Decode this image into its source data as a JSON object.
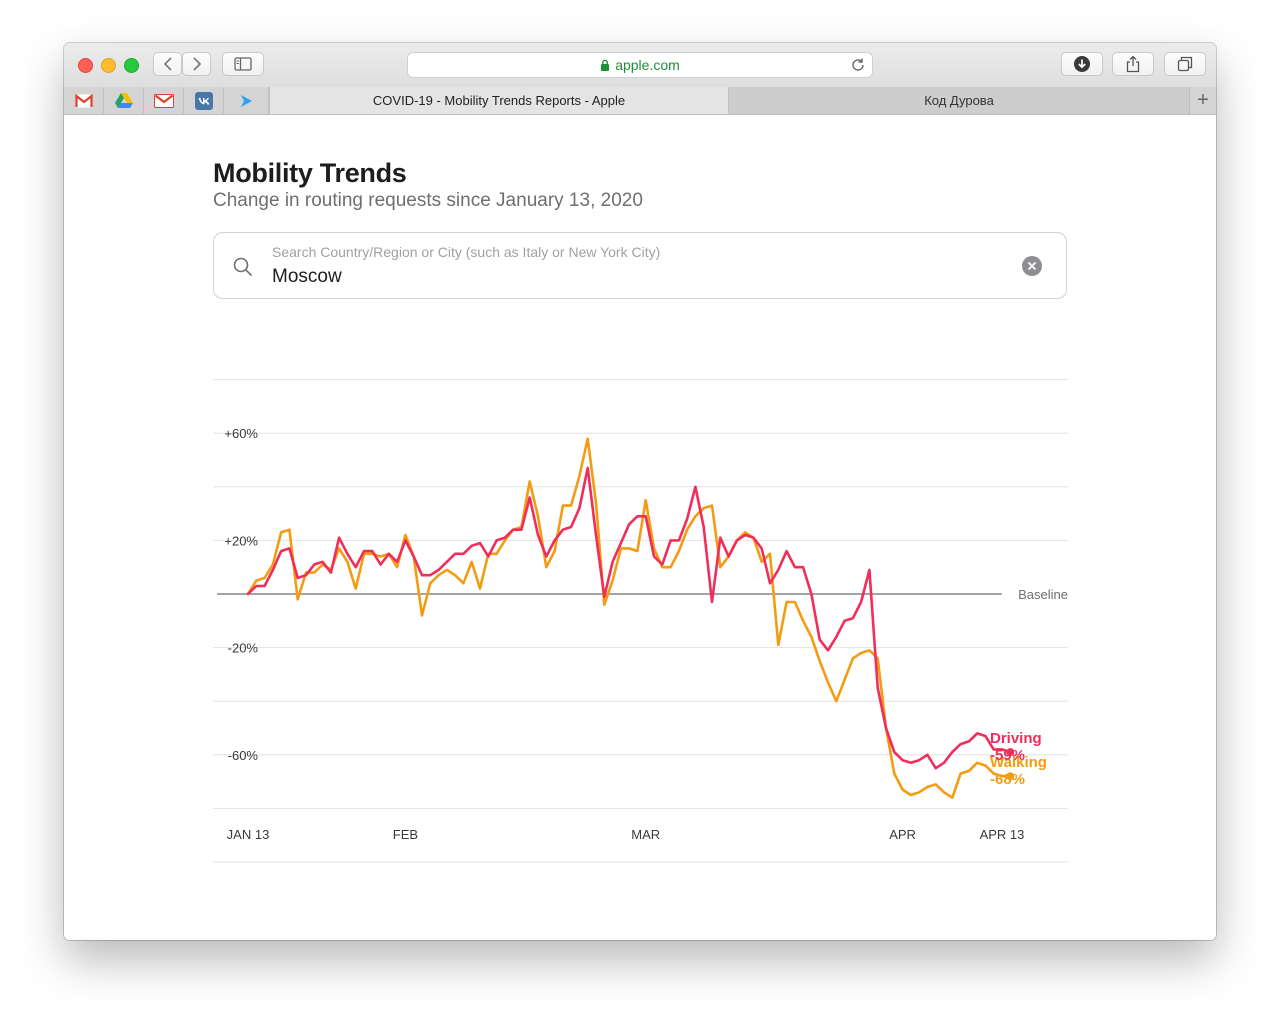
{
  "browser": {
    "address": "apple.com",
    "tabs": [
      {
        "label": "COVID-19 - Mobility Trends Reports - Apple",
        "active": true
      },
      {
        "label": "Код Дурова",
        "active": false
      }
    ],
    "favorites": [
      "gmail-icon",
      "google-drive-icon",
      "gmail-icon",
      "vk-icon",
      "telegram-icon"
    ]
  },
  "page": {
    "title": "Mobility Trends",
    "subtitle": "Change in routing requests since January 13, 2020",
    "search": {
      "placeholder": "Search Country/Region or City (such as Italy or New York City)",
      "value": "Moscow"
    }
  },
  "chart_data": {
    "type": "line",
    "x_axis": {
      "kind": "date",
      "start": "2020-01-13",
      "end": "2020-04-13",
      "tick_labels": [
        {
          "date": "2020-01-13",
          "label": "JAN 13"
        },
        {
          "date": "2020-02-01",
          "label": "FEB"
        },
        {
          "date": "2020-03-01",
          "label": "MAR"
        },
        {
          "date": "2020-04-01",
          "label": "APR"
        },
        {
          "date": "2020-04-13",
          "label": "APR 13"
        }
      ]
    },
    "y_axis": {
      "ylim": [
        -100,
        80
      ],
      "tick_labels": [
        {
          "value": 60,
          "label": "+60%"
        },
        {
          "value": 20,
          "label": "+20%"
        },
        {
          "value": -20,
          "label": "-20%"
        },
        {
          "value": -60,
          "label": "-60%"
        }
      ],
      "grid_values": [
        80,
        60,
        40,
        20,
        -20,
        -40,
        -60,
        -80,
        -100
      ]
    },
    "baseline": {
      "value": 0,
      "label": "Baseline"
    },
    "series": [
      {
        "name": "Driving",
        "end_label": "-59%",
        "color": "#ef2e5a",
        "values": [
          0,
          3,
          3,
          9,
          16,
          17,
          6,
          7,
          11,
          12,
          8,
          21,
          15,
          10,
          16,
          16,
          11,
          15,
          12,
          20,
          14,
          7,
          7,
          9,
          12,
          15,
          15,
          18,
          19,
          14,
          20,
          21,
          24,
          24,
          36,
          22,
          14,
          20,
          24,
          25,
          32,
          47,
          22,
          -1,
          12,
          19,
          26,
          29,
          29,
          14,
          11,
          20,
          20,
          28,
          40,
          25,
          -3,
          21,
          14,
          20,
          22,
          21,
          17,
          4,
          9,
          16,
          10,
          10,
          0,
          -17,
          -21,
          -16,
          -10,
          -9,
          -3,
          9,
          -35,
          -50,
          -59,
          -62,
          -63,
          -62,
          -60,
          -65,
          -63,
          -59,
          -56,
          -55,
          -52,
          -53,
          -58,
          -58,
          -59
        ]
      },
      {
        "name": "Walking",
        "end_label": "-68%",
        "color": "#f39c12",
        "values": [
          0,
          5,
          6,
          11,
          23,
          24,
          -2,
          8,
          8,
          11,
          9,
          17,
          12,
          2,
          15,
          15,
          14,
          15,
          10,
          22,
          14,
          -8,
          4,
          7,
          9,
          7,
          4,
          12,
          2,
          15,
          15,
          20,
          24,
          25,
          42,
          29,
          10,
          16,
          33,
          33,
          44,
          58,
          34,
          -4,
          5,
          17,
          17,
          16,
          35,
          17,
          10,
          10,
          16,
          24,
          29,
          32,
          33,
          10,
          14,
          20,
          23,
          21,
          12,
          15,
          -19,
          -3,
          -3,
          -10,
          -16,
          -25,
          -33,
          -40,
          -32,
          -24,
          -22,
          -21,
          -24,
          -50,
          -67,
          -73,
          -75,
          -74,
          -72,
          -71,
          -74,
          -76,
          -67,
          -66,
          -63,
          -64,
          -67,
          -68,
          -68
        ]
      }
    ]
  }
}
